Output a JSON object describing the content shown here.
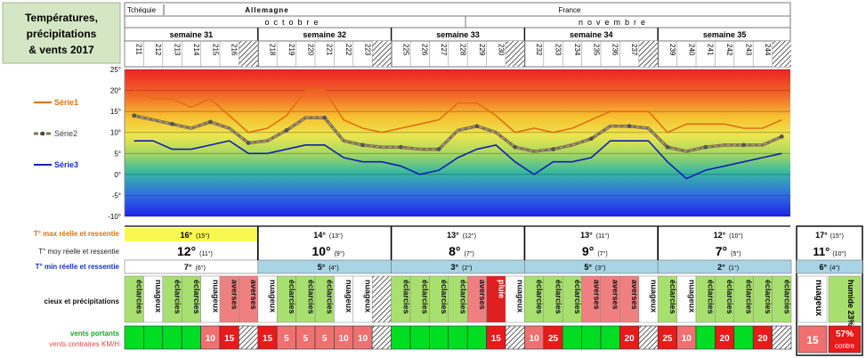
{
  "title": "Températures, précipitations & vents 2017",
  "header": {
    "countries": [
      "Tchéquie",
      "Allemagne",
      "France"
    ],
    "months": [
      "octobre",
      "novembre"
    ],
    "weeks": [
      "semaine 31",
      "semaine 32",
      "semaine 33",
      "semaine 34",
      "semaine 35"
    ],
    "days": [
      "211",
      "212",
      "213",
      "214",
      "215",
      "216",
      "",
      "218",
      "219",
      "220",
      "221",
      "222",
      "223",
      "",
      "225",
      "226",
      "227",
      "228",
      "229",
      "230",
      "",
      "232",
      "233",
      "234",
      "235",
      "236",
      "237",
      "",
      "239",
      "240",
      "241",
      "242",
      "243",
      "244",
      ""
    ]
  },
  "chart_data": {
    "type": "line",
    "ylim": [
      -10,
      25
    ],
    "yticks": [
      "25°",
      "20°",
      "15°",
      "10°",
      "5°",
      "0°",
      "-5°",
      "-10°"
    ],
    "series": [
      {
        "name": "Série1",
        "color": "#e07010",
        "values": [
          20,
          18,
          18,
          16,
          18,
          14,
          10,
          11,
          14,
          20,
          20,
          13,
          11,
          10,
          11,
          12,
          13,
          17,
          17,
          14,
          10,
          11,
          10,
          11,
          13,
          15,
          15,
          15,
          10,
          12,
          12,
          12,
          11,
          11,
          13
        ]
      },
      {
        "name": "Série2",
        "color": "#807050",
        "values": [
          14,
          13,
          12,
          11,
          12.5,
          11,
          7.5,
          8,
          10.5,
          13.5,
          13.5,
          8,
          7,
          6.5,
          6.5,
          6,
          6,
          10.5,
          11.5,
          10,
          6.5,
          5.5,
          6,
          7,
          8.5,
          11.5,
          11.5,
          11,
          6.5,
          5.5,
          6.5,
          7,
          7,
          7,
          9
        ]
      },
      {
        "name": "Série3",
        "color": "#1020b0",
        "values": [
          8,
          8,
          6,
          6,
          7,
          8,
          5,
          5,
          6,
          7,
          7,
          4,
          3,
          3,
          2,
          0,
          1,
          4,
          6,
          7,
          3,
          0,
          3,
          3,
          4,
          8,
          8,
          8,
          3,
          -1,
          1,
          2,
          3,
          4,
          5
        ]
      }
    ]
  },
  "stats": {
    "labels": {
      "max": "T° max réelle et ressentie",
      "moy": "T° moy réelle et ressentie",
      "min": "T° min réelle et ressentie",
      "sky": "cieux et précipitations",
      "wind1": "vents portants",
      "wind2": "vents contraires KM/H"
    },
    "weeks": [
      {
        "max": "16°",
        "max_r": "(15°)",
        "moy": "12°",
        "moy_r": "(11°)",
        "min": "7°",
        "min_r": "(6°)"
      },
      {
        "max": "14°",
        "max_r": "(13°)",
        "moy": "10°",
        "moy_r": "(9°)",
        "min": "5°",
        "min_r": "(4°)"
      },
      {
        "max": "13°",
        "max_r": "(12°)",
        "moy": "8°",
        "moy_r": "(7°)",
        "min": "3°",
        "min_r": "(2°)"
      },
      {
        "max": "13°",
        "max_r": "(11°)",
        "moy": "9°",
        "moy_r": "(7°)",
        "min": "5°",
        "min_r": "(3°)"
      },
      {
        "max": "12°",
        "max_r": "(10°)",
        "moy": "7°",
        "moy_r": "(5°)",
        "min": "2°",
        "min_r": "(1°)"
      }
    ],
    "summary": {
      "max": "17°",
      "max_r": "(15°)",
      "moy": "11°",
      "moy_r": "(10°)",
      "min": "6°",
      "min_r": "(4°)",
      "sky": "nuageux",
      "humidity": "humide 23%",
      "wind": "15",
      "contre_pct": "57%",
      "contre_label": "contre"
    }
  },
  "sky": [
    "éclarcies",
    "nuageux",
    "éclarcies",
    "éclarcies",
    "nuageux",
    "averses",
    "averses",
    "nuageux",
    "éclarcies",
    "éclarcies",
    "éclarcies",
    "nuageux",
    "nuageux",
    "",
    "éclarcies",
    "éclarcies",
    "éclarcies",
    "éclarcies",
    "averses",
    "pluie",
    "nuageux",
    "éclarcies",
    "éclarcies",
    "éclarcies",
    "averses",
    "averses",
    "averses",
    "nuageux",
    "éclarcies",
    "nuageux",
    "éclarcies",
    "éclarcies",
    "éclarcies",
    "éclarcies",
    "éclarcies"
  ],
  "wind": [
    "",
    "",
    "",
    "",
    "10",
    "15",
    "",
    "15",
    "5",
    "5",
    "5",
    "10",
    "10",
    "",
    "",
    "",
    "",
    "",
    "",
    "15",
    "",
    "10",
    "25",
    "",
    "",
    "",
    "20",
    "",
    "25",
    "10",
    "",
    "20",
    "",
    "20",
    ""
  ],
  "colors": {
    "temp_max": "#e07010",
    "temp_moy": "#404040",
    "temp_min": "#1030c0",
    "wind_green": "#00dd22"
  }
}
